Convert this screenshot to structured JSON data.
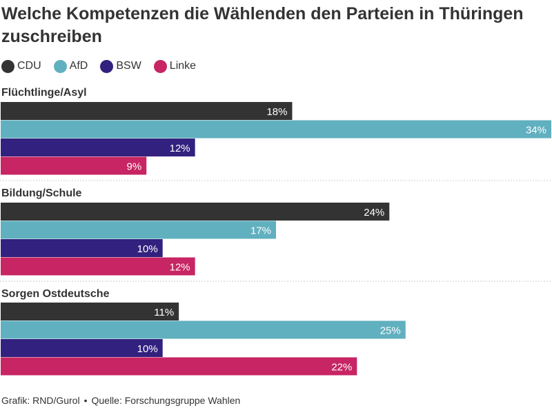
{
  "title": "Welche Kompetenzen die Wählenden den Parteien in Thüringen zuschreiben",
  "legend": [
    {
      "name": "CDU",
      "color": "#333333"
    },
    {
      "name": "AfD",
      "color": "#61b0bf"
    },
    {
      "name": "BSW",
      "color": "#32217e"
    },
    {
      "name": "Linke",
      "color": "#c72563"
    }
  ],
  "footer": {
    "credit": "Grafik: RND/Gurol",
    "separator": "•",
    "source": "Quelle: Forschungsgruppe Wahlen"
  },
  "chart_data": {
    "type": "bar",
    "orientation": "horizontal",
    "categories": [
      "Flüchtlinge/Asyl",
      "Bildung/Schule",
      "Sorgen Ostdeutsche"
    ],
    "series": [
      {
        "name": "CDU",
        "color": "#333333",
        "values": [
          18,
          24,
          11
        ]
      },
      {
        "name": "AfD",
        "color": "#61b0bf",
        "values": [
          34,
          17,
          25
        ]
      },
      {
        "name": "BSW",
        "color": "#32217e",
        "values": [
          12,
          10,
          10
        ]
      },
      {
        "name": "Linke",
        "color": "#c72563",
        "values": [
          9,
          12,
          22
        ]
      }
    ],
    "value_suffix": "%",
    "xlim": [
      0,
      34
    ],
    "grid": false,
    "legend_position": "top-left"
  }
}
